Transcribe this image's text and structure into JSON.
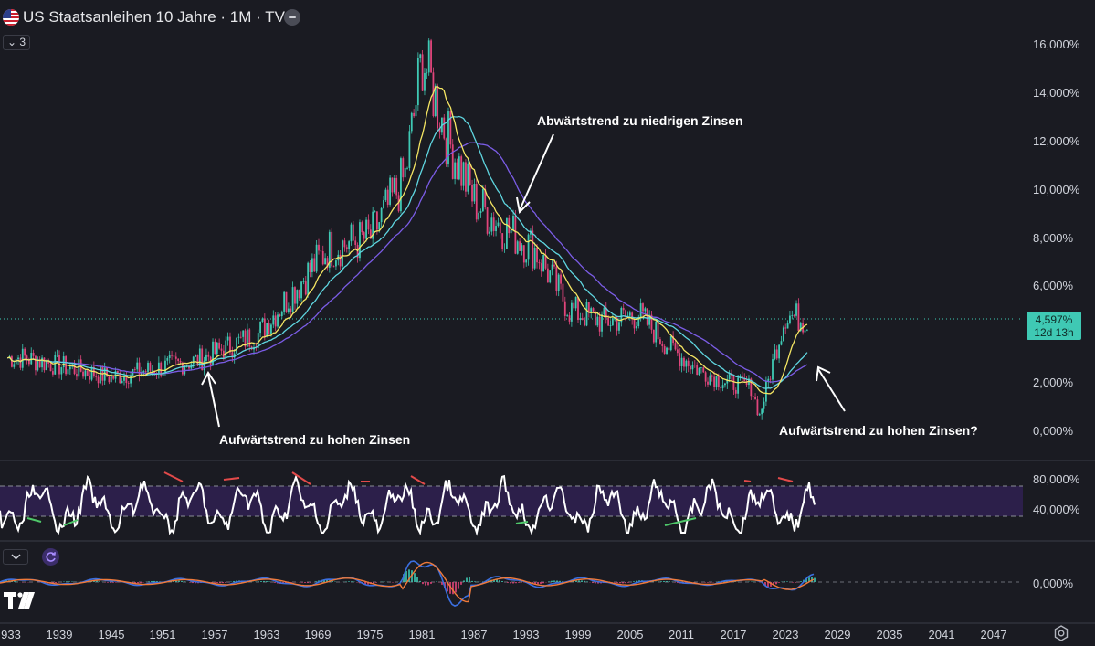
{
  "header": {
    "title": "US Staatsanleihen 10 Jahre · 1M · TVC",
    "collapse_count": "3",
    "icons": [
      "us-flag-icon",
      "more-icon",
      "chevron-down-icon"
    ]
  },
  "price_axis": {
    "labels": [
      "16,000%",
      "14,000%",
      "12,000%",
      "10,000%",
      "8,000%",
      "6,000%",
      "2,000%",
      "0,000%"
    ],
    "current_price": "4,597%",
    "countdown": "12d 13h"
  },
  "rsi_axis": {
    "labels": [
      "80,000%",
      "40,000%"
    ]
  },
  "macd_axis": {
    "labels": [
      "0,000%"
    ]
  },
  "time_axis": {
    "labels": [
      "933",
      "1939",
      "1945",
      "1951",
      "1957",
      "1963",
      "1969",
      "1975",
      "1981",
      "1987",
      "1993",
      "1999",
      "2005",
      "2011",
      "2017",
      "2023",
      "2029",
      "2035",
      "2041",
      "2047"
    ]
  },
  "annotations": {
    "downtrend": "Abwärtstrend zu niedrigen Zinsen",
    "uptrend_old": "Aufwärtstrend zu hohen Zinsen",
    "uptrend_new": "Aufwärtstrend zu hohen Zinsen?"
  },
  "colors": {
    "background": "#1a1b22",
    "up": "#3fc9b4",
    "down": "#e0457b",
    "ma_yellow": "#f5e663",
    "ma_cyan": "#5fd6e0",
    "ma_purple": "#7b5ce6",
    "rsi_band": "#2c1f4a",
    "macd_line": "#3b6fe0",
    "signal_line": "#f07a3a"
  },
  "chart_data": {
    "type": "line",
    "title": "US Staatsanleihen 10 Jahre",
    "x": [
      1935,
      1945,
      1955,
      1962,
      1970,
      1975,
      1979,
      1981,
      1984,
      1987,
      1990,
      1994,
      1998,
      2002,
      2006,
      2010,
      2013,
      2016,
      2019,
      2020,
      2022,
      2023,
      2025
    ],
    "series": [
      {
        "values": [
          3.0,
          2.2,
          2.9,
          4.0,
          7.5,
          8.0,
          10.5,
          15.5,
          12.0,
          9.5,
          8.5,
          7.5,
          5.0,
          4.5,
          4.8,
          3.3,
          2.5,
          2.0,
          1.8,
          0.6,
          3.5,
          4.8,
          4.6
        ]
      }
    ],
    "ylim": [
      0,
      16
    ]
  }
}
